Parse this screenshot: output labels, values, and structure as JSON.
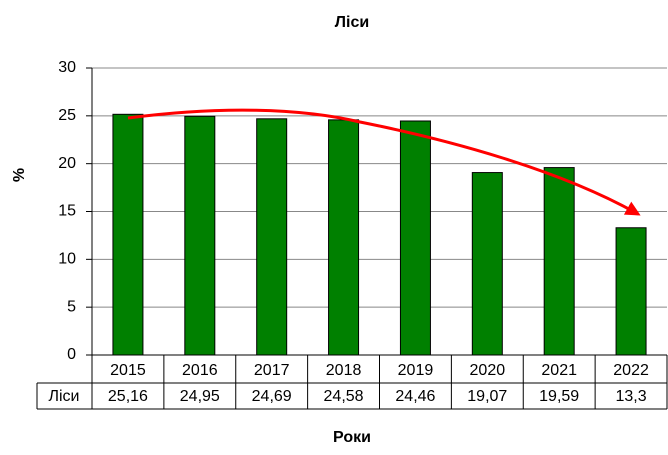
{
  "chart_data": {
    "type": "bar",
    "title": "Ліси",
    "y_label": "%",
    "x_label": "Роки",
    "categories": [
      "2015",
      "2016",
      "2017",
      "2018",
      "2019",
      "2020",
      "2021",
      "2022"
    ],
    "series": [
      {
        "name": "Ліси",
        "color": "#008000",
        "values": [
          25.16,
          24.95,
          24.69,
          24.58,
          24.46,
          19.07,
          19.59,
          13.3
        ],
        "value_labels": [
          "25,16",
          "24,95",
          "24,69",
          "24,58",
          "24,46",
          "19,07",
          "19,59",
          "13,3"
        ]
      }
    ],
    "ylim": [
      0,
      30
    ],
    "yticks": [
      0,
      5,
      10,
      15,
      20,
      25,
      30
    ],
    "grid": true
  }
}
